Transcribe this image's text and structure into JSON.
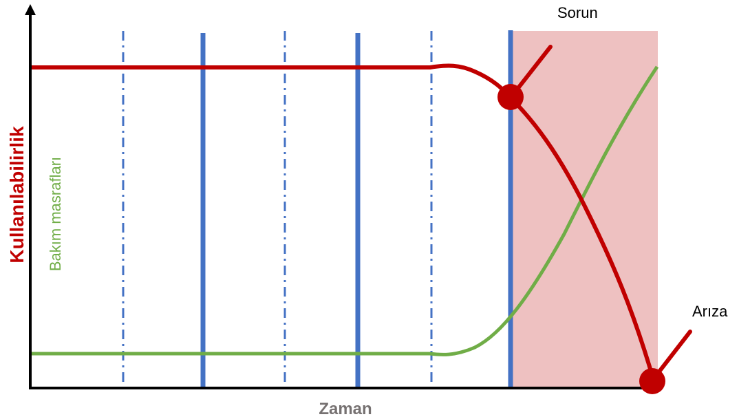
{
  "labels": {
    "x_axis": "Zaman",
    "y_axis": "Kullanılabilirlik",
    "cost_curve": "Bakım masrafları",
    "problem": "Sorun",
    "failure": "Arıza"
  },
  "colors": {
    "availability": "#c00000",
    "cost": "#70ad47",
    "maintenance_line": "#4472c4",
    "problem_zone": "#eec1c1",
    "axis": "#000000",
    "x_label": "#767171"
  }
}
